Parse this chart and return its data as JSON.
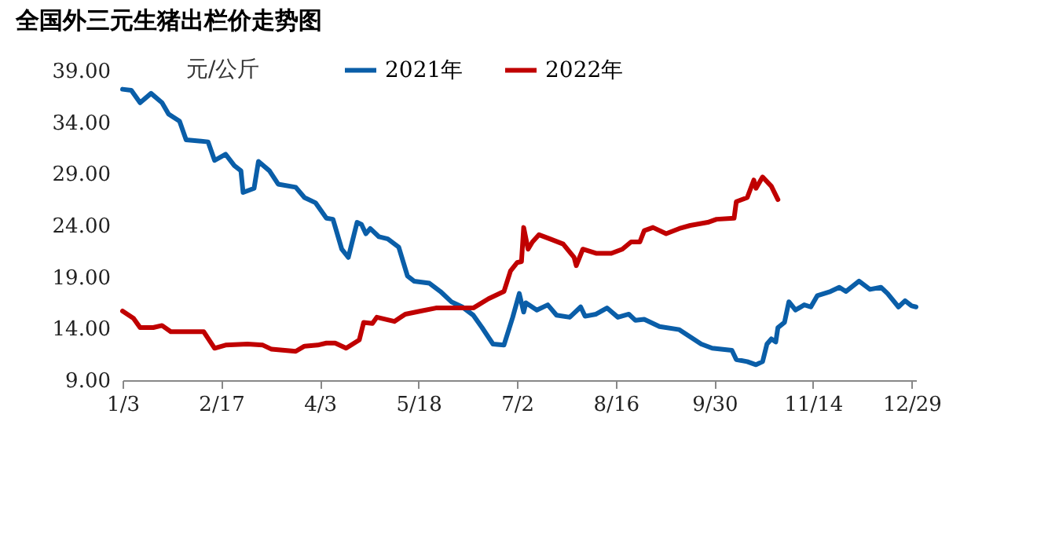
{
  "chart_data": {
    "type": "line",
    "title": "全国外三元生猪出栏价走势图",
    "ylabel": "元/公斤",
    "xlim": [
      "--01-03",
      "--12-31"
    ],
    "xticks": [
      {
        "value": "--01-03",
        "label": "1/3"
      },
      {
        "value": "--02-17",
        "label": "2/17"
      },
      {
        "value": "--04-03",
        "label": "4/3"
      },
      {
        "value": "--05-18",
        "label": "5/18"
      },
      {
        "value": "--07-02",
        "label": "7/2"
      },
      {
        "value": "--08-16",
        "label": "8/16"
      },
      {
        "value": "--09-30",
        "label": "9/30"
      },
      {
        "value": "--11-14",
        "label": "11/14"
      },
      {
        "value": "--12-29",
        "label": "12/29"
      }
    ],
    "ylim": [
      9,
      39
    ],
    "yticks": [
      {
        "value": 9,
        "label": "9.00"
      },
      {
        "value": 14,
        "label": "14.00"
      },
      {
        "value": 19,
        "label": "19.00"
      },
      {
        "value": 24,
        "label": "24.00"
      },
      {
        "value": 29,
        "label": "29.00"
      },
      {
        "value": 34,
        "label": "34.00"
      },
      {
        "value": 39,
        "label": "39.00"
      }
    ],
    "legend": "top",
    "grid": false,
    "series": [
      {
        "name": "2021年",
        "color": "#0a5ea8",
        "x": [
          "--01-03",
          "--01-07",
          "--01-11",
          "--01-16",
          "--01-21",
          "--01-24",
          "--01-29",
          "--02-01",
          "--02-11",
          "--02-14",
          "--02-19",
          "--02-23",
          "--02-26",
          "--02-27",
          "--03-04",
          "--03-06",
          "--03-11",
          "--03-15",
          "--03-23",
          "--03-27",
          "--04-01",
          "--04-06",
          "--04-09",
          "--04-13",
          "--04-16",
          "--04-20",
          "--04-22",
          "--04-24",
          "--04-26",
          "--04-30",
          "--05-04",
          "--05-09",
          "--05-13",
          "--05-16",
          "--05-23",
          "--05-28",
          "--06-02",
          "--06-07",
          "--06-12",
          "--06-16",
          "--06-21",
          "--06-26",
          "--06-30",
          "--07-03",
          "--07-05",
          "--07-06",
          "--07-11",
          "--07-16",
          "--07-20",
          "--07-26",
          "--07-31",
          "--08-02",
          "--08-07",
          "--08-12",
          "--08-17",
          "--08-22",
          "--08-25",
          "--08-29",
          "--09-05",
          "--09-14",
          "--09-24",
          "--09-29",
          "--10-08",
          "--10-10",
          "--10-15",
          "--10-19",
          "--10-22",
          "--10-24",
          "--10-26",
          "--10-28",
          "--10-29",
          "--11-01",
          "--11-03",
          "--11-06",
          "--11-10",
          "--11-13",
          "--11-16",
          "--11-22",
          "--11-26",
          "--11-29",
          "--12-05",
          "--12-10",
          "--12-15",
          "--12-18",
          "--12-23",
          "--12-26",
          "--12-29",
          "--12-31"
        ],
        "values": [
          37.2,
          37.1,
          35.9,
          36.8,
          35.9,
          34.8,
          34.1,
          32.3,
          32.1,
          30.3,
          30.9,
          29.8,
          29.3,
          27.2,
          27.6,
          30.2,
          29.3,
          28.0,
          27.7,
          26.7,
          26.2,
          24.7,
          24.6,
          21.7,
          20.9,
          24.3,
          24.1,
          23.2,
          23.7,
          22.9,
          22.7,
          21.9,
          19.1,
          18.6,
          18.4,
          17.6,
          16.6,
          16.1,
          15.3,
          14.1,
          12.5,
          12.4,
          15.1,
          17.4,
          15.6,
          16.5,
          15.8,
          16.3,
          15.3,
          15.1,
          16.1,
          15.2,
          15.4,
          16.0,
          15.1,
          15.4,
          14.8,
          14.9,
          14.2,
          13.9,
          12.5,
          12.1,
          11.9,
          11.0,
          10.8,
          10.5,
          10.8,
          12.5,
          13.0,
          12.7,
          14.1,
          14.6,
          16.6,
          15.8,
          16.3,
          16.1,
          17.2,
          17.6,
          18.0,
          17.6,
          18.6,
          17.8,
          18.0,
          17.4,
          16.1,
          16.7,
          16.2,
          16.1
        ]
      },
      {
        "name": "2022年",
        "color": "#c00000",
        "x": [
          "--01-03",
          "--01-08",
          "--01-11",
          "--01-17",
          "--01-21",
          "--01-25",
          "--02-09",
          "--02-14",
          "--02-19",
          "--03-01",
          "--03-08",
          "--03-12",
          "--03-23",
          "--03-27",
          "--04-02",
          "--04-06",
          "--04-10",
          "--04-15",
          "--04-21",
          "--04-23",
          "--04-27",
          "--04-29",
          "--05-07",
          "--05-12",
          "--05-19",
          "--05-26",
          "--06-12",
          "--06-19",
          "--06-26",
          "--06-29",
          "--07-02",
          "--07-04",
          "--07-05",
          "--07-07",
          "--07-09",
          "--07-12",
          "--07-17",
          "--07-23",
          "--07-28",
          "--07-29",
          "--08-01",
          "--08-07",
          "--08-14",
          "--08-19",
          "--08-23",
          "--08-27",
          "--08-29",
          "--09-02",
          "--09-08",
          "--09-14",
          "--09-19",
          "--09-27",
          "--10-01",
          "--10-09",
          "--10-10",
          "--10-15",
          "--10-18",
          "--10-19",
          "--10-22",
          "--10-26",
          "--10-29"
        ],
        "values": [
          15.7,
          15.0,
          14.1,
          14.1,
          14.3,
          13.7,
          13.7,
          12.1,
          12.4,
          12.5,
          12.4,
          12.0,
          11.8,
          12.3,
          12.4,
          12.6,
          12.6,
          12.1,
          12.9,
          14.6,
          14.5,
          15.1,
          14.7,
          15.4,
          15.7,
          16.0,
          16.0,
          16.9,
          17.6,
          19.6,
          20.4,
          20.5,
          23.8,
          21.7,
          22.4,
          23.1,
          22.7,
          22.2,
          20.9,
          20.1,
          21.7,
          21.3,
          21.3,
          21.7,
          22.4,
          22.4,
          23.5,
          23.8,
          23.2,
          23.7,
          24.0,
          24.3,
          24.6,
          24.7,
          26.3,
          26.7,
          28.4,
          27.6,
          28.7,
          27.8,
          26.5
        ]
      }
    ]
  }
}
